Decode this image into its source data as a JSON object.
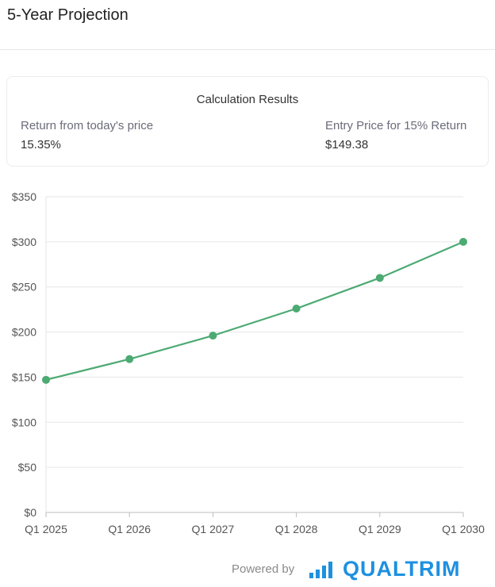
{
  "header": {
    "title": "5-Year Projection"
  },
  "results": {
    "title": "Calculation Results",
    "return_label": "Return from today's price",
    "return_value": "15.35%",
    "entry_label": "Entry Price for 15% Return",
    "entry_value": "$149.38"
  },
  "chart_data": {
    "type": "line",
    "categories": [
      "Q1 2025",
      "Q1 2026",
      "Q1 2027",
      "Q1 2028",
      "Q1 2029",
      "Q1 2030"
    ],
    "series": [
      {
        "values": [
          147,
          170,
          196,
          226,
          260,
          300
        ],
        "color": "#4caa73"
      }
    ],
    "yticks": [
      "$0",
      "$50",
      "$100",
      "$150",
      "$200",
      "$250",
      "$300",
      "$350"
    ],
    "ylim": [
      0,
      350
    ],
    "grid": true,
    "legend": "none"
  },
  "footer": {
    "powered_by": "Powered by",
    "brand": "QUALTRIM",
    "brand_icon": "bar-chart-icon"
  }
}
